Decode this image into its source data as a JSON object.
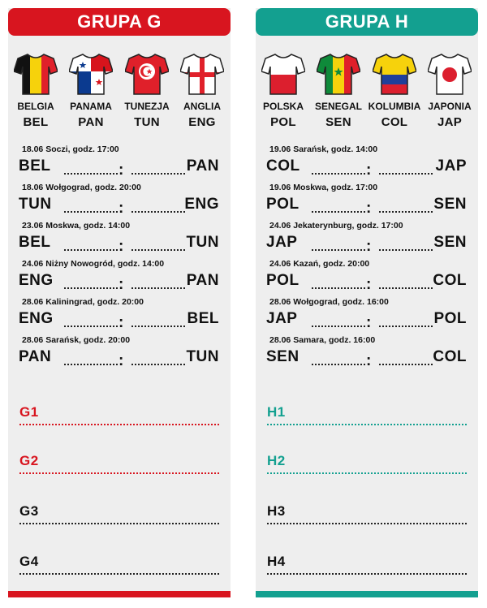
{
  "colors": {
    "group_g_accent": "#d8151f",
    "group_h_accent": "#13a090",
    "panel_bg": "#eeeeee"
  },
  "groups": [
    {
      "title": "GRUPA G",
      "teams": [
        {
          "name": "BELGIA",
          "code": "BEL",
          "shirt": "belgium-shirt-icon"
        },
        {
          "name": "PANAMA",
          "code": "PAN",
          "shirt": "panama-shirt-icon"
        },
        {
          "name": "TUNEZJA",
          "code": "TUN",
          "shirt": "tunisia-shirt-icon"
        },
        {
          "name": "ANGLIA",
          "code": "ENG",
          "shirt": "england-shirt-icon"
        }
      ],
      "matches": [
        {
          "info": "18.06 Soczi, godz. 17:00",
          "home": "BEL",
          "away": "PAN"
        },
        {
          "info": "18.06 Wołgograd, godz. 20:00",
          "home": "TUN",
          "away": "ENG"
        },
        {
          "info": "23.06 Moskwa, godz. 14:00",
          "home": "BEL",
          "away": "TUN"
        },
        {
          "info": "24.06 Niżny Nowogród, godz. 14:00",
          "home": "ENG",
          "away": "PAN"
        },
        {
          "info": "28.06 Kaliningrad, godz. 20:00",
          "home": "ENG",
          "away": "BEL"
        },
        {
          "info": "28.06 Sarańsk, godz. 20:00",
          "home": "PAN",
          "away": "TUN"
        }
      ],
      "standings": [
        "G1",
        "G2",
        "G3",
        "G4"
      ]
    },
    {
      "title": "GRUPA H",
      "teams": [
        {
          "name": "POLSKA",
          "code": "POL",
          "shirt": "poland-shirt-icon"
        },
        {
          "name": "SENEGAL",
          "code": "SEN",
          "shirt": "senegal-shirt-icon"
        },
        {
          "name": "KOLUMBIA",
          "code": "COL",
          "shirt": "colombia-shirt-icon"
        },
        {
          "name": "JAPONIA",
          "code": "JAP",
          "shirt": "japan-shirt-icon"
        }
      ],
      "matches": [
        {
          "info": "19.06 Sarańsk, godz. 14:00",
          "home": "COL",
          "away": "JAP"
        },
        {
          "info": "19.06 Moskwa, godz. 17:00",
          "home": "POL",
          "away": "SEN"
        },
        {
          "info": "24.06 Jekaterynburg, godz. 17:00",
          "home": "JAP",
          "away": "SEN"
        },
        {
          "info": "24.06 Kazań, godz. 20:00",
          "home": "POL",
          "away": "COL"
        },
        {
          "info": "28.06 Wołgograd, godz. 16:00",
          "home": "JAP",
          "away": "POL"
        },
        {
          "info": "28.06 Samara, godz. 16:00",
          "home": "SEN",
          "away": "COL"
        }
      ],
      "standings": [
        "H1",
        "H2",
        "H3",
        "H4"
      ]
    }
  ]
}
